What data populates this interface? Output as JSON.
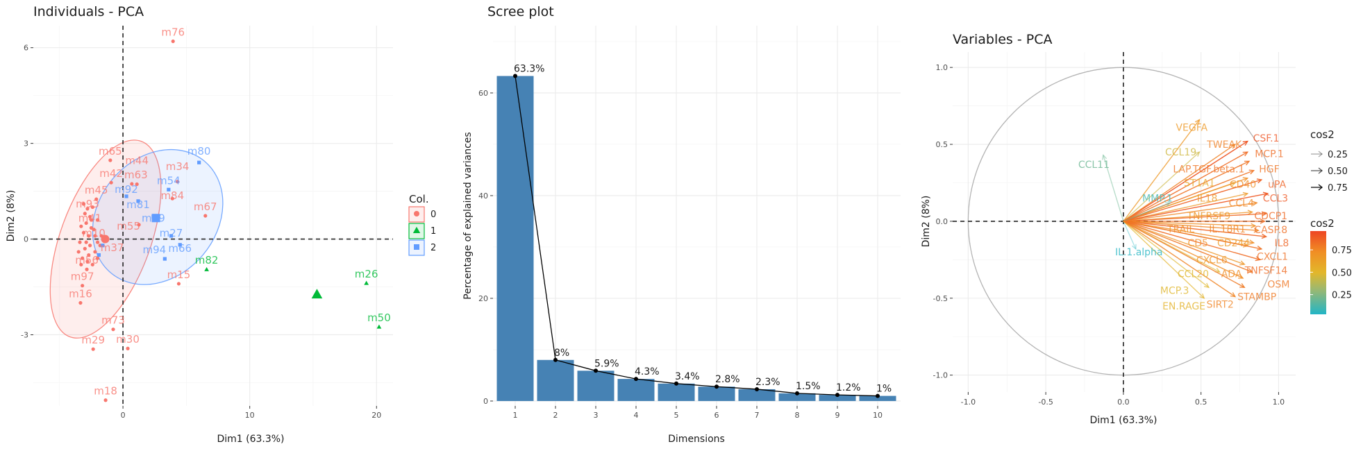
{
  "chart_data": [
    {
      "type": "scatter",
      "title": "Individuals - PCA",
      "xlabel": "Dim1 (63.3%)",
      "ylabel": "Dim2 (8%)",
      "xlim": [
        -7.07,
        21.3
      ],
      "ylim": [
        -5.23,
        6.69
      ],
      "xticks": [
        0,
        10,
        20
      ],
      "yticks": [
        -3,
        0,
        3,
        6
      ],
      "grid": true,
      "legend": {
        "title": "Col.",
        "position": "right",
        "groups": [
          {
            "label": "0",
            "color": "#F8766D",
            "shape": "circle"
          },
          {
            "label": "1",
            "color": "#00BA38",
            "shape": "triangle"
          },
          {
            "label": "2",
            "color": "#619CFF",
            "shape": "square"
          }
        ]
      },
      "points": [
        {
          "name": "m76",
          "x": 3.95,
          "y": 6.2,
          "group": "0"
        },
        {
          "name": "m65",
          "x": -1.0,
          "y": 2.47,
          "group": "0"
        },
        {
          "name": "m42",
          "x": -0.93,
          "y": 1.77,
          "group": "0"
        },
        {
          "name": "m63",
          "x": 0.7,
          "y": 1.73,
          "group": "0"
        },
        {
          "name": "m44",
          "x": 1.1,
          "y": 1.72,
          "group": "0"
        },
        {
          "name": "m92",
          "x": 0.27,
          "y": 1.34,
          "group": "2"
        },
        {
          "name": "m81",
          "x": 1.2,
          "y": 1.19,
          "group": "2"
        },
        {
          "name": "m54",
          "x": 3.6,
          "y": 1.55,
          "group": "2"
        },
        {
          "name": "m34",
          "x": 4.3,
          "y": 1.8,
          "group": "0"
        },
        {
          "name": "m84",
          "x": 3.9,
          "y": 1.27,
          "group": "0"
        },
        {
          "name": "m80",
          "x": 6.0,
          "y": 2.4,
          "group": "2"
        },
        {
          "name": "m67",
          "x": 6.5,
          "y": 0.73,
          "group": "0"
        },
        {
          "name": "m79",
          "x": 2.4,
          "y": 0.7,
          "group": "2"
        },
        {
          "name": "m55",
          "x": 1.26,
          "y": 0.45,
          "group": "0"
        },
        {
          "name": "m27",
          "x": 3.8,
          "y": 0.1,
          "group": "2"
        },
        {
          "name": "m66",
          "x": 4.5,
          "y": -0.18,
          "group": "2"
        },
        {
          "name": "m94",
          "x": 3.3,
          "y": -0.62,
          "group": "2"
        },
        {
          "name": "m82",
          "x": 6.6,
          "y": -0.95,
          "group": "1"
        },
        {
          "name": "m15",
          "x": 4.4,
          "y": -1.4,
          "group": "0"
        },
        {
          "name": "m26",
          "x": 19.2,
          "y": -1.38,
          "group": "1"
        },
        {
          "name": "m50",
          "x": 20.2,
          "y": -2.75,
          "group": "1"
        },
        {
          "name": "m56",
          "x": -2.85,
          "y": -0.95,
          "group": "0"
        },
        {
          "name": "m97",
          "x": -3.2,
          "y": -1.46,
          "group": "0"
        },
        {
          "name": "m16",
          "x": -3.35,
          "y": -2.0,
          "group": "0"
        },
        {
          "name": "m73",
          "x": -0.77,
          "y": -2.83,
          "group": "0"
        },
        {
          "name": "m29",
          "x": -2.35,
          "y": -3.45,
          "group": "0"
        },
        {
          "name": "m30",
          "x": 0.38,
          "y": -3.43,
          "group": "0"
        },
        {
          "name": "m18",
          "x": -1.37,
          "y": -5.05,
          "group": "0"
        },
        {
          "name": "m45",
          "x": -2.1,
          "y": 1.25,
          "group": "0"
        },
        {
          "name": "m93",
          "x": -2.8,
          "y": 0.95,
          "group": "0"
        },
        {
          "name": "m41",
          "x": -2.6,
          "y": 0.7,
          "group": "0"
        },
        {
          "name": "m10",
          "x": -2.3,
          "y": 0.3,
          "group": "0"
        },
        {
          "name": "m37",
          "x": -2.0,
          "y": -0.1,
          "group": "0"
        },
        {
          "name": "",
          "x": -3.3,
          "y": 0.4,
          "group": "0"
        },
        {
          "name": "",
          "x": -3.1,
          "y": 0.2,
          "group": "0"
        },
        {
          "name": "",
          "x": -2.9,
          "y": 0.5,
          "group": "0"
        },
        {
          "name": "",
          "x": -2.7,
          "y": 0.1,
          "group": "0"
        },
        {
          "name": "",
          "x": -2.5,
          "y": 0.35,
          "group": "0"
        },
        {
          "name": "",
          "x": -3.4,
          "y": -0.1,
          "group": "0"
        },
        {
          "name": "",
          "x": -3.0,
          "y": -0.3,
          "group": "0"
        },
        {
          "name": "",
          "x": -2.6,
          "y": -0.2,
          "group": "0"
        },
        {
          "name": "",
          "x": -2.2,
          "y": -0.4,
          "group": "0"
        },
        {
          "name": "",
          "x": -3.2,
          "y": -0.6,
          "group": "0"
        },
        {
          "name": "",
          "x": -2.8,
          "y": -0.7,
          "group": "0"
        },
        {
          "name": "",
          "x": -2.4,
          "y": -0.8,
          "group": "0"
        },
        {
          "name": "",
          "x": -2.0,
          "y": -0.6,
          "group": "0"
        },
        {
          "name": "",
          "x": -3.5,
          "y": -0.4,
          "group": "0"
        },
        {
          "name": "",
          "x": -2.7,
          "y": -0.5,
          "group": "0"
        },
        {
          "name": "",
          "x": -3.0,
          "y": 0.8,
          "group": "0"
        },
        {
          "name": "",
          "x": -2.4,
          "y": 1.0,
          "group": "0"
        },
        {
          "name": "",
          "x": -2.0,
          "y": 0.6,
          "group": "0"
        },
        {
          "name": "",
          "x": -1.8,
          "y": -0.2,
          "group": "0"
        },
        {
          "name": "",
          "x": -2.9,
          "y": -0.1,
          "group": "0"
        },
        {
          "name": "",
          "x": -3.3,
          "y": -0.8,
          "group": "0"
        },
        {
          "name": "",
          "x": -2.5,
          "y": 0.6,
          "group": "0"
        },
        {
          "name": "",
          "x": -1.7,
          "y": 0.1,
          "group": "0"
        },
        {
          "name": "",
          "x": -3.1,
          "y": 1.1,
          "group": "0"
        },
        {
          "name": "",
          "x": -2.2,
          "y": 0.1,
          "group": "0"
        },
        {
          "name": "",
          "x": -1.6,
          "y": -0.2,
          "group": "2"
        },
        {
          "name": "",
          "x": -1.9,
          "y": -0.5,
          "group": "2"
        }
      ],
      "centroids": [
        {
          "group": "0",
          "x": -1.4,
          "y": 0.0
        },
        {
          "group": "1",
          "x": 15.3,
          "y": -1.73
        },
        {
          "group": "2",
          "x": 2.6,
          "y": 0.66
        }
      ],
      "ellipses": [
        {
          "group": "0",
          "center": [
            -1.37,
            0.0
          ]
        },
        {
          "group": "2",
          "center": [
            2.74,
            0.69
          ]
        }
      ]
    },
    {
      "type": "bar",
      "title": "Scree plot",
      "xlabel": "Dimensions",
      "ylabel": "Percentage of explained variances",
      "categories": [
        "1",
        "2",
        "3",
        "4",
        "5",
        "6",
        "7",
        "8",
        "9",
        "10"
      ],
      "values": [
        63.3,
        8,
        5.9,
        4.3,
        3.4,
        2.8,
        2.3,
        1.5,
        1.2,
        1
      ],
      "labels": [
        "63.3%",
        "8%",
        "5.9%",
        "4.3%",
        "3.4%",
        "2.8%",
        "2.3%",
        "1.5%",
        "1.2%",
        "1%"
      ],
      "ylim": [
        -0.95,
        73.1
      ],
      "yticks": [
        0,
        20,
        40,
        60
      ],
      "bar_color": "#4682B4",
      "line": true,
      "grid": true
    },
    {
      "type": "arrows",
      "title": "Variables - PCA",
      "xlabel": "Dim1 (63.3%)",
      "ylabel": "Dim2 (8%)",
      "xlim": [
        -1.1,
        1.11
      ],
      "ylim": [
        -1.11,
        1.1
      ],
      "xticks": [
        -1.0,
        -0.5,
        0.0,
        0.5,
        1.0
      ],
      "yticks": [
        -1.0,
        -0.5,
        0.0,
        0.5,
        1.0
      ],
      "xtick_labels": [
        "-1.0",
        "-0.5",
        "0.0",
        "0.5",
        "1.0"
      ],
      "ytick_labels": [
        "-1.0",
        "-0.5",
        "0.0",
        "0.5",
        "1.0"
      ],
      "circle_radius": 1.0,
      "legend_alpha": {
        "title": "cos2",
        "values": [
          "0.25",
          "0.50",
          "0.75"
        ]
      },
      "legend_color": {
        "title": "cos2",
        "values": [
          "0.75",
          "0.50",
          "0.25"
        ],
        "range": [
          0.03,
          0.96
        ],
        "colors": [
          "#22B5C6",
          "#9CB870",
          "#E2B72B",
          "#F08E24",
          "#EE4523"
        ]
      },
      "variables": [
        {
          "name": "VEGFA",
          "x": 0.49,
          "y": 0.66,
          "cos2": 0.67
        },
        {
          "name": "CCL19",
          "x": 0.49,
          "y": 0.45,
          "cos2": 0.44
        },
        {
          "name": "CCL11",
          "x": -0.13,
          "y": 0.43,
          "cos2": 0.2
        },
        {
          "name": "CSF.1",
          "x": 0.8,
          "y": 0.52,
          "cos2": 0.91
        },
        {
          "name": "TWEAK",
          "x": 0.72,
          "y": 0.5,
          "cos2": 0.77
        },
        {
          "name": "MCP.1",
          "x": 0.8,
          "y": 0.45,
          "cos2": 0.84
        },
        {
          "name": "LAP.TGF.beta.1",
          "x": 0.81,
          "y": 0.39,
          "cos2": 0.81
        },
        {
          "name": "HGF",
          "x": 0.84,
          "y": 0.33,
          "cos2": 0.81
        },
        {
          "name": "ST1A1",
          "x": 0.72,
          "y": 0.25,
          "cos2": 0.58
        },
        {
          "name": "CD40",
          "x": 0.8,
          "y": 0.28,
          "cos2": 0.72
        },
        {
          "name": "uPA",
          "x": 0.89,
          "y": 0.27,
          "cos2": 0.87
        },
        {
          "name": "IL18",
          "x": 0.8,
          "y": 0.18,
          "cos2": 0.67
        },
        {
          "name": "CCL3",
          "x": 0.93,
          "y": 0.18,
          "cos2": 0.9
        },
        {
          "name": "MMP.1",
          "x": 0.3,
          "y": 0.12,
          "cos2": 0.1
        },
        {
          "name": "CCL4",
          "x": 0.86,
          "y": 0.12,
          "cos2": 0.75
        },
        {
          "name": "TNFRSF9",
          "x": 0.83,
          "y": 0.06,
          "cos2": 0.69
        },
        {
          "name": "CDCP1",
          "x": 0.92,
          "y": 0.05,
          "cos2": 0.85
        },
        {
          "name": "CASP.8",
          "x": 0.91,
          "y": 0.0,
          "cos2": 0.83
        },
        {
          "name": "TRAIL",
          "x": 0.85,
          "y": -0.03,
          "cos2": 0.72
        },
        {
          "name": "IL.18R1",
          "x": 0.87,
          "y": -0.06,
          "cos2": 0.76
        },
        {
          "name": "IL8",
          "x": 0.92,
          "y": -0.1,
          "cos2": 0.86
        },
        {
          "name": "CD5",
          "x": 0.84,
          "y": -0.14,
          "cos2": 0.73
        },
        {
          "name": "CD244",
          "x": 0.8,
          "y": -0.16,
          "cos2": 0.67
        },
        {
          "name": "CXCL1",
          "x": 0.89,
          "y": -0.18,
          "cos2": 0.82
        },
        {
          "name": "IL.1.alpha",
          "x": 0.08,
          "y": -0.18,
          "cos2": 0.04
        },
        {
          "name": "CXCL6",
          "x": 0.78,
          "y": -0.28,
          "cos2": 0.69
        },
        {
          "name": "TNFSF14",
          "x": 0.88,
          "y": -0.25,
          "cos2": 0.84
        },
        {
          "name": "CCL20",
          "x": 0.62,
          "y": -0.33,
          "cos2": 0.49
        },
        {
          "name": "ADA",
          "x": 0.77,
          "y": -0.37,
          "cos2": 0.73
        },
        {
          "name": "OSM",
          "x": 0.83,
          "y": -0.33,
          "cos2": 0.8
        },
        {
          "name": "MCP.3",
          "x": 0.55,
          "y": -0.43,
          "cos2": 0.49
        },
        {
          "name": "STAMBP",
          "x": 0.78,
          "y": -0.43,
          "cos2": 0.79
        },
        {
          "name": "EN.RAGE",
          "x": 0.52,
          "y": -0.5,
          "cos2": 0.52
        },
        {
          "name": "SIRT2",
          "x": 0.72,
          "y": -0.49,
          "cos2": 0.76
        }
      ]
    }
  ]
}
